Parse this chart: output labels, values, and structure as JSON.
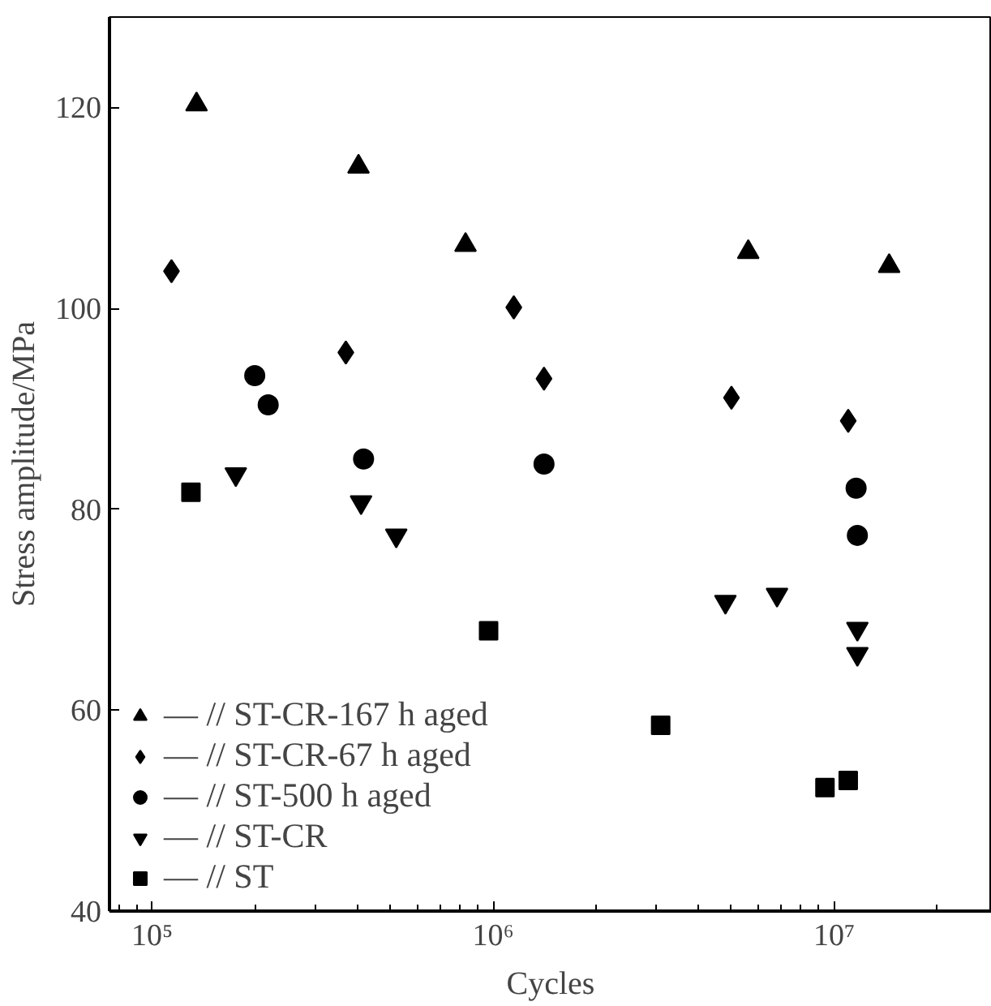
{
  "chart_data": {
    "type": "scatter",
    "xlabel": "Cycles",
    "ylabel": "Stress amplitude/MPa",
    "log": "x",
    "xlim": [
      75000,
      29000000
    ],
    "ylim": [
      40,
      129
    ],
    "xticks": [
      {
        "value": 100000,
        "label": "10⁵"
      },
      {
        "value": 1000000,
        "label": "10⁶"
      },
      {
        "value": 10000000,
        "label": "10⁷"
      }
    ],
    "yticks": [
      40,
      60,
      80,
      100,
      120
    ],
    "grid": false,
    "legend": "bottom left",
    "series": [
      {
        "name": "— // ST-CR-167 h aged",
        "color": "#000000",
        "marker": "triangle",
        "x": [
          135000,
          403000,
          830000,
          5600000,
          14500000
        ],
        "values": [
          120.3,
          114.1,
          106.3,
          105.6,
          104.2
        ]
      },
      {
        "name": "— // ST-CR-67 h aged",
        "color": "#000000",
        "marker": "diamond",
        "x": [
          114000,
          370000,
          1150000,
          1410000,
          5000000,
          11000000
        ],
        "values": [
          103.7,
          95.6,
          100.1,
          93.0,
          91.1,
          88.8
        ]
      },
      {
        "name": "— // ST-500 h aged",
        "color": "#000000",
        "marker": "circle",
        "x": [
          200000,
          219000,
          417000,
          1410000,
          11600000,
          11700000
        ],
        "values": [
          93.3,
          90.4,
          85.0,
          84.5,
          82.1,
          77.4
        ]
      },
      {
        "name": "— // ST-CR",
        "color": "#000000",
        "x": [
          176000,
          410000,
          520000,
          4800000,
          6800000,
          11700000,
          11700000
        ],
        "values": [
          83.5,
          80.7,
          77.4,
          70.8,
          71.5,
          68.1,
          65.6
        ]
      },
      {
        "name": "— // ST",
        "color": "#000000",
        "marker": "square",
        "x": [
          130000,
          970000,
          3100000,
          9400000,
          11000000
        ],
        "values": [
          81.7,
          67.9,
          58.5,
          52.3,
          53.0
        ]
      }
    ]
  }
}
